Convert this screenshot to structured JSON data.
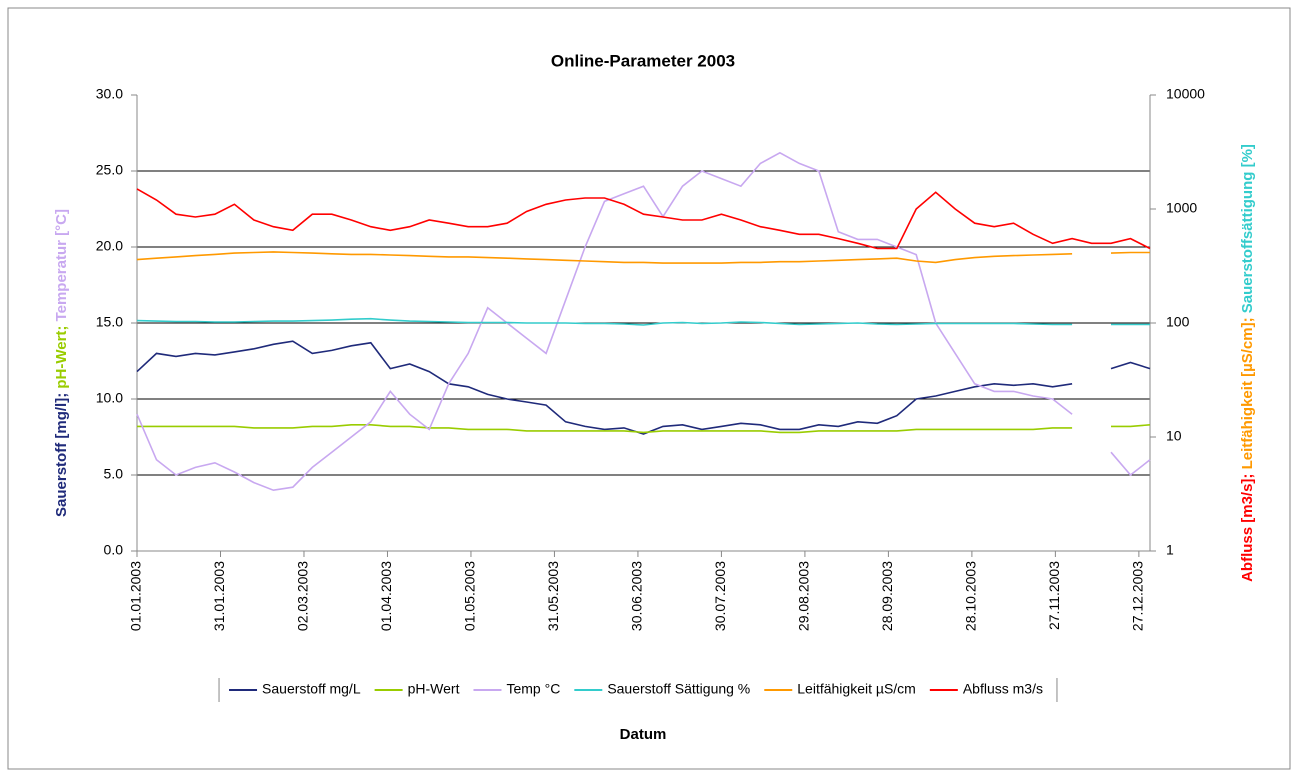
{
  "chart_data": {
    "type": "line",
    "title": "Online-Parameter 2003",
    "xlabel": "Datum",
    "ylabel_parts": [
      {
        "text": "Sauerstoff [mg/l]; ",
        "color": "#1f2a7a"
      },
      {
        "text": "pH-Wert; ",
        "color": "#99cc00"
      },
      {
        "text": "Temperatur [°C]",
        "color": "#c8a8f0"
      }
    ],
    "y2label_parts": [
      {
        "text": "Abfluss [m3/s]; ",
        "color": "#ff0000"
      },
      {
        "text": "Leitfähigkeit [µS/cm]; ",
        "color": "#ff9900"
      },
      {
        "text": "Sauerstoffsättigung [%]",
        "color": "#33cccc"
      }
    ],
    "x": [
      "01.01.2003",
      "08.01.2003",
      "15.01.2003",
      "22.01.2003",
      "29.01.2003",
      "05.02.2003",
      "12.02.2003",
      "19.02.2003",
      "26.02.2003",
      "05.03.2003",
      "12.03.2003",
      "19.03.2003",
      "26.03.2003",
      "02.04.2003",
      "09.04.2003",
      "16.04.2003",
      "23.04.2003",
      "30.04.2003",
      "07.05.2003",
      "14.05.2003",
      "21.05.2003",
      "28.05.2003",
      "04.06.2003",
      "11.06.2003",
      "18.06.2003",
      "25.06.2003",
      "02.07.2003",
      "09.07.2003",
      "16.07.2003",
      "23.07.2003",
      "30.07.2003",
      "06.08.2003",
      "13.08.2003",
      "20.08.2003",
      "27.08.2003",
      "03.09.2003",
      "10.09.2003",
      "17.09.2003",
      "24.09.2003",
      "01.10.2003",
      "08.10.2003",
      "15.10.2003",
      "22.10.2003",
      "29.10.2003",
      "05.11.2003",
      "12.11.2003",
      "19.11.2003",
      "26.11.2003",
      "03.12.2003",
      "10.12.2003",
      "17.12.2003",
      "24.12.2003",
      "31.12.2003"
    ],
    "xlim": [
      "01.01.2003",
      "31.12.2003"
    ],
    "xticks": [
      "01.01.2003",
      "31.01.2003",
      "02.03.2003",
      "01.04.2003",
      "01.05.2003",
      "31.05.2003",
      "30.06.2003",
      "30.07.2003",
      "29.08.2003",
      "28.09.2003",
      "28.10.2003",
      "27.11.2003",
      "27.12.2003"
    ],
    "ylim": [
      0,
      30
    ],
    "yticks": [
      {
        "value": 0,
        "label": "0.0"
      },
      {
        "value": 5,
        "label": "5.0"
      },
      {
        "value": 10,
        "label": "10.0"
      },
      {
        "value": 15,
        "label": "15.0"
      },
      {
        "value": 20,
        "label": "20.0"
      },
      {
        "value": 25,
        "label": "25.0"
      },
      {
        "value": 30,
        "label": "30.0"
      }
    ],
    "y2lim": [
      1,
      10000
    ],
    "y2ticks": [
      1,
      10,
      100,
      1000,
      10000
    ],
    "y2_log": true,
    "grid": true,
    "legend": "bottom",
    "series": [
      {
        "name": "Sauerstoff mg/L",
        "color": "#1f2a7a",
        "axis": "y",
        "values": [
          11.8,
          13.0,
          12.8,
          13.0,
          12.9,
          13.1,
          13.3,
          13.6,
          13.8,
          13.0,
          13.2,
          13.5,
          13.7,
          12.0,
          12.3,
          11.8,
          11.0,
          10.8,
          10.3,
          10.0,
          9.8,
          9.6,
          8.5,
          8.2,
          8.0,
          8.1,
          7.7,
          8.2,
          8.3,
          8.0,
          8.2,
          8.4,
          8.3,
          8.0,
          8.0,
          8.3,
          8.2,
          8.5,
          8.4,
          8.9,
          10.0,
          10.2,
          10.5,
          10.8,
          11.0,
          10.9,
          11.0,
          10.8,
          11.0,
          null,
          12.0,
          12.4,
          12.0
        ]
      },
      {
        "name": "pH-Wert",
        "color": "#99cc00",
        "axis": "y",
        "values": [
          8.2,
          8.2,
          8.2,
          8.2,
          8.2,
          8.2,
          8.1,
          8.1,
          8.1,
          8.2,
          8.2,
          8.3,
          8.3,
          8.2,
          8.2,
          8.1,
          8.1,
          8.0,
          8.0,
          8.0,
          7.9,
          7.9,
          7.9,
          7.9,
          7.9,
          7.9,
          7.8,
          7.9,
          7.9,
          7.9,
          7.9,
          7.9,
          7.9,
          7.8,
          7.8,
          7.9,
          7.9,
          7.9,
          7.9,
          7.9,
          8.0,
          8.0,
          8.0,
          8.0,
          8.0,
          8.0,
          8.0,
          8.1,
          8.1,
          null,
          8.2,
          8.2,
          8.3
        ]
      },
      {
        "name": "Temp °C",
        "color": "#c8a8f0",
        "axis": "y",
        "values": [
          9.0,
          6.0,
          5.0,
          5.5,
          5.8,
          5.2,
          4.5,
          4.0,
          4.2,
          5.5,
          6.5,
          7.5,
          8.5,
          10.5,
          9.0,
          8.0,
          11.0,
          13.0,
          16.0,
          15.0,
          14.0,
          13.0,
          16.5,
          20.0,
          23.0,
          23.5,
          24.0,
          22.0,
          24.0,
          25.0,
          24.5,
          24.0,
          25.5,
          26.2,
          25.5,
          25.0,
          21.0,
          20.5,
          20.5,
          20.0,
          19.5,
          15.0,
          13.0,
          11.0,
          10.5,
          10.5,
          10.2,
          10.0,
          9.0,
          null,
          6.5,
          5.0,
          6.0
        ]
      },
      {
        "name": "Sauerstoff Sättigung %",
        "color": "#33cccc",
        "axis": "y2",
        "values": [
          105,
          104,
          103,
          103,
          102,
          102,
          103,
          104,
          104,
          105,
          106,
          108,
          109,
          106,
          104,
          103,
          102,
          101,
          101,
          101,
          100,
          100,
          100,
          99,
          99,
          98,
          96,
          100,
          101,
          99,
          100,
          102,
          101,
          99,
          97,
          98,
          99,
          100,
          98,
          97,
          98,
          99,
          99,
          99,
          99,
          99,
          98,
          97,
          97,
          null,
          97,
          97,
          97
        ]
      },
      {
        "name": "Leitfähigkeit µS/cm",
        "color": "#ff9900",
        "axis": "y2",
        "values": [
          360,
          370,
          380,
          390,
          400,
          410,
          415,
          420,
          415,
          410,
          405,
          400,
          400,
          395,
          390,
          385,
          380,
          380,
          375,
          370,
          365,
          360,
          355,
          350,
          345,
          340,
          340,
          335,
          335,
          335,
          335,
          340,
          340,
          345,
          345,
          350,
          355,
          360,
          365,
          370,
          350,
          340,
          360,
          375,
          385,
          390,
          395,
          400,
          405,
          null,
          410,
          415,
          415
        ]
      },
      {
        "name": "Abfluss m3/s",
        "color": "#ff0000",
        "axis": "y2",
        "values": [
          1500,
          1200,
          900,
          850,
          900,
          1100,
          800,
          700,
          650,
          900,
          900,
          800,
          700,
          650,
          700,
          800,
          750,
          700,
          700,
          750,
          950,
          1100,
          1200,
          1250,
          1250,
          1100,
          900,
          850,
          800,
          800,
          900,
          800,
          700,
          650,
          600,
          600,
          550,
          500,
          450,
          450,
          1000,
          1400,
          1000,
          750,
          700,
          750,
          600,
          500,
          550,
          500,
          500,
          550,
          450
        ]
      }
    ]
  }
}
